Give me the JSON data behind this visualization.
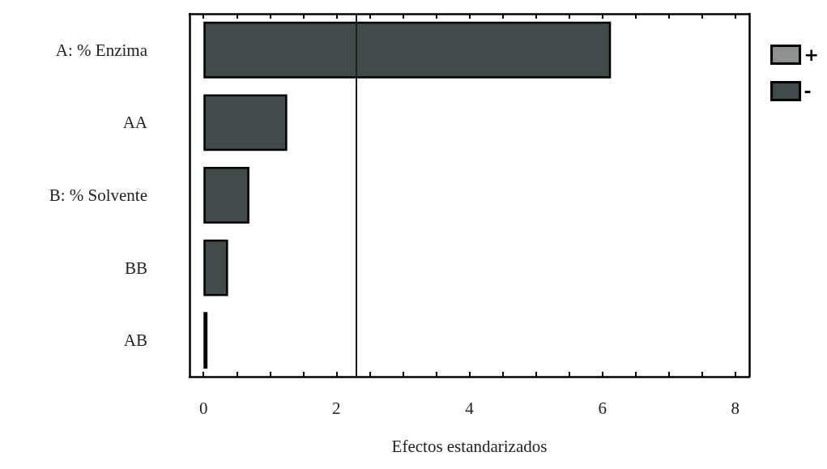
{
  "chart_data": {
    "type": "bar",
    "orientation": "horizontal",
    "stacked": true,
    "xlabel": "Efectos estandarizados",
    "categories": [
      "A: % Enzima",
      "AA",
      "B: % Solvente",
      "BB",
      "AB"
    ],
    "series": [
      {
        "name": "+",
        "color": "#8f9190",
        "values": [
          null,
          null,
          null,
          null,
          null
        ]
      },
      {
        "name": "-",
        "color": "#414a48",
        "values": [
          6.13,
          1.26,
          0.69,
          0.37,
          0.06
        ]
      }
    ],
    "xlim": [
      -0.21,
      8.21
    ],
    "xticks": [
      0,
      {
        "value": 0.5,
        "label": null
      },
      {
        "value": 1,
        "label": null
      },
      {
        "value": 1.5,
        "label": null
      },
      2,
      {
        "value": 2.5,
        "label": null
      },
      {
        "value": 3,
        "label": null
      },
      {
        "value": 3.5,
        "label": null
      },
      4,
      {
        "value": 4.5,
        "label": null
      },
      {
        "value": 5,
        "label": null
      },
      {
        "value": 5.5,
        "label": null
      },
      6,
      {
        "value": 6.5,
        "label": null
      },
      {
        "value": 7,
        "label": null
      },
      {
        "value": 7.5,
        "label": null
      },
      8
    ],
    "ref_lines": [
      {
        "axis": "x",
        "value": 2.3,
        "color": "#1a2220"
      }
    ],
    "legend": "top right",
    "grid": false
  }
}
